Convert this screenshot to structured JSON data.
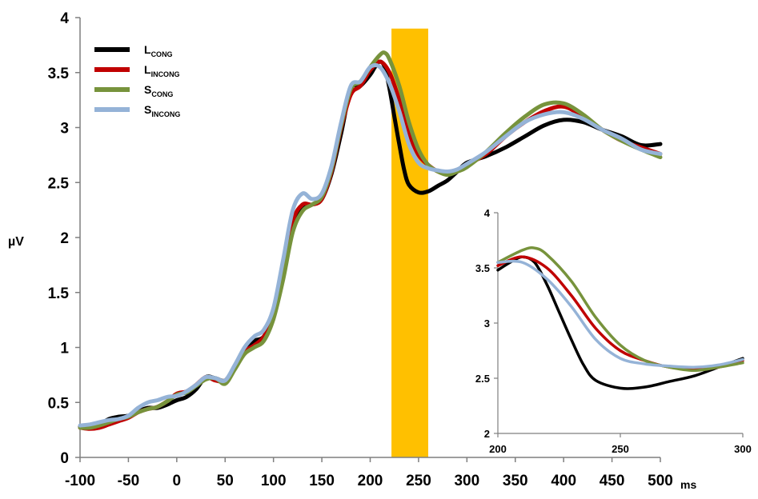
{
  "chart_data": {
    "type": "line",
    "ylabel": "µV",
    "xunit": "ms",
    "main": {
      "xlim": [
        -100,
        500
      ],
      "ylim": [
        0,
        4
      ],
      "xticks": [
        -100,
        -50,
        0,
        50,
        100,
        150,
        200,
        250,
        300,
        350,
        400,
        450,
        500
      ],
      "yticks": [
        0,
        0.5,
        1,
        1.5,
        2,
        2.5,
        3,
        3.5,
        4
      ],
      "highlight_window": [
        222,
        260
      ],
      "highlight_color": "#FFC000"
    },
    "inset": {
      "xlim": [
        200,
        300
      ],
      "ylim": [
        2,
        4
      ],
      "xticks": [
        200,
        250,
        300
      ],
      "yticks": [
        2,
        2.5,
        3,
        3.5,
        4
      ]
    },
    "series": [
      {
        "name": "L",
        "subscript": "CONG",
        "color": "#000000",
        "points": [
          [
            -100,
            0.28
          ],
          [
            -90,
            0.28
          ],
          [
            -80,
            0.3
          ],
          [
            -70,
            0.35
          ],
          [
            -60,
            0.37
          ],
          [
            -50,
            0.38
          ],
          [
            -40,
            0.42
          ],
          [
            -30,
            0.45
          ],
          [
            -20,
            0.45
          ],
          [
            -10,
            0.48
          ],
          [
            0,
            0.52
          ],
          [
            10,
            0.55
          ],
          [
            20,
            0.62
          ],
          [
            30,
            0.73
          ],
          [
            40,
            0.72
          ],
          [
            50,
            0.7
          ],
          [
            60,
            0.82
          ],
          [
            70,
            0.98
          ],
          [
            80,
            1.06
          ],
          [
            90,
            1.1
          ],
          [
            100,
            1.28
          ],
          [
            110,
            1.65
          ],
          [
            120,
            2.1
          ],
          [
            130,
            2.28
          ],
          [
            140,
            2.3
          ],
          [
            150,
            2.35
          ],
          [
            160,
            2.58
          ],
          [
            170,
            2.95
          ],
          [
            180,
            3.35
          ],
          [
            190,
            3.38
          ],
          [
            200,
            3.48
          ],
          [
            205,
            3.55
          ],
          [
            210,
            3.6
          ],
          [
            215,
            3.55
          ],
          [
            220,
            3.35
          ],
          [
            225,
            3.1
          ],
          [
            230,
            2.85
          ],
          [
            235,
            2.62
          ],
          [
            240,
            2.48
          ],
          [
            250,
            2.41
          ],
          [
            260,
            2.42
          ],
          [
            270,
            2.47
          ],
          [
            280,
            2.52
          ],
          [
            290,
            2.6
          ],
          [
            300,
            2.68
          ],
          [
            320,
            2.74
          ],
          [
            340,
            2.82
          ],
          [
            360,
            2.92
          ],
          [
            380,
            3.02
          ],
          [
            400,
            3.07
          ],
          [
            420,
            3.05
          ],
          [
            440,
            2.98
          ],
          [
            460,
            2.92
          ],
          [
            480,
            2.84
          ],
          [
            500,
            2.85
          ]
        ]
      },
      {
        "name": "L",
        "subscript": "INCONG",
        "color": "#C00000",
        "points": [
          [
            -100,
            0.27
          ],
          [
            -90,
            0.26
          ],
          [
            -80,
            0.27
          ],
          [
            -70,
            0.3
          ],
          [
            -60,
            0.33
          ],
          [
            -50,
            0.36
          ],
          [
            -40,
            0.41
          ],
          [
            -30,
            0.44
          ],
          [
            -20,
            0.46
          ],
          [
            -10,
            0.51
          ],
          [
            0,
            0.58
          ],
          [
            10,
            0.6
          ],
          [
            20,
            0.66
          ],
          [
            30,
            0.73
          ],
          [
            40,
            0.7
          ],
          [
            50,
            0.7
          ],
          [
            60,
            0.82
          ],
          [
            70,
            0.96
          ],
          [
            80,
            1.02
          ],
          [
            90,
            1.1
          ],
          [
            100,
            1.3
          ],
          [
            110,
            1.72
          ],
          [
            120,
            2.15
          ],
          [
            130,
            2.3
          ],
          [
            140,
            2.3
          ],
          [
            150,
            2.35
          ],
          [
            160,
            2.6
          ],
          [
            170,
            3.0
          ],
          [
            180,
            3.3
          ],
          [
            190,
            3.38
          ],
          [
            200,
            3.52
          ],
          [
            210,
            3.6
          ],
          [
            220,
            3.5
          ],
          [
            230,
            3.25
          ],
          [
            240,
            2.95
          ],
          [
            250,
            2.75
          ],
          [
            260,
            2.66
          ],
          [
            270,
            2.6
          ],
          [
            280,
            2.58
          ],
          [
            290,
            2.6
          ],
          [
            300,
            2.66
          ],
          [
            320,
            2.76
          ],
          [
            340,
            2.92
          ],
          [
            360,
            3.05
          ],
          [
            380,
            3.15
          ],
          [
            400,
            3.19
          ],
          [
            420,
            3.1
          ],
          [
            440,
            2.98
          ],
          [
            460,
            2.88
          ],
          [
            480,
            2.82
          ],
          [
            500,
            2.76
          ]
        ]
      },
      {
        "name": "S",
        "subscript": "CONG",
        "color": "#77933C",
        "points": [
          [
            -100,
            0.27
          ],
          [
            -90,
            0.27
          ],
          [
            -80,
            0.29
          ],
          [
            -70,
            0.32
          ],
          [
            -60,
            0.35
          ],
          [
            -50,
            0.37
          ],
          [
            -40,
            0.41
          ],
          [
            -30,
            0.44
          ],
          [
            -20,
            0.46
          ],
          [
            -10,
            0.51
          ],
          [
            0,
            0.57
          ],
          [
            10,
            0.59
          ],
          [
            20,
            0.65
          ],
          [
            30,
            0.71
          ],
          [
            40,
            0.72
          ],
          [
            50,
            0.67
          ],
          [
            60,
            0.8
          ],
          [
            70,
            0.94
          ],
          [
            80,
            1.0
          ],
          [
            90,
            1.06
          ],
          [
            100,
            1.26
          ],
          [
            110,
            1.62
          ],
          [
            120,
            2.05
          ],
          [
            130,
            2.24
          ],
          [
            140,
            2.3
          ],
          [
            150,
            2.37
          ],
          [
            160,
            2.62
          ],
          [
            170,
            3.02
          ],
          [
            180,
            3.35
          ],
          [
            190,
            3.42
          ],
          [
            200,
            3.55
          ],
          [
            210,
            3.66
          ],
          [
            215,
            3.68
          ],
          [
            220,
            3.62
          ],
          [
            230,
            3.38
          ],
          [
            240,
            3.05
          ],
          [
            250,
            2.8
          ],
          [
            260,
            2.66
          ],
          [
            270,
            2.6
          ],
          [
            280,
            2.57
          ],
          [
            290,
            2.6
          ],
          [
            300,
            2.64
          ],
          [
            320,
            2.78
          ],
          [
            340,
            2.95
          ],
          [
            360,
            3.1
          ],
          [
            380,
            3.21
          ],
          [
            400,
            3.22
          ],
          [
            420,
            3.12
          ],
          [
            440,
            2.98
          ],
          [
            460,
            2.88
          ],
          [
            480,
            2.8
          ],
          [
            500,
            2.73
          ]
        ]
      },
      {
        "name": "S",
        "subscript": "INCONG",
        "color": "#95B3D7",
        "points": [
          [
            -100,
            0.29
          ],
          [
            -90,
            0.3
          ],
          [
            -80,
            0.32
          ],
          [
            -70,
            0.34
          ],
          [
            -60,
            0.35
          ],
          [
            -50,
            0.38
          ],
          [
            -40,
            0.45
          ],
          [
            -30,
            0.5
          ],
          [
            -20,
            0.52
          ],
          [
            -10,
            0.55
          ],
          [
            0,
            0.56
          ],
          [
            10,
            0.6
          ],
          [
            20,
            0.66
          ],
          [
            30,
            0.73
          ],
          [
            40,
            0.72
          ],
          [
            50,
            0.7
          ],
          [
            60,
            0.84
          ],
          [
            70,
            1.0
          ],
          [
            80,
            1.1
          ],
          [
            90,
            1.16
          ],
          [
            100,
            1.36
          ],
          [
            110,
            1.8
          ],
          [
            120,
            2.25
          ],
          [
            130,
            2.4
          ],
          [
            140,
            2.35
          ],
          [
            150,
            2.4
          ],
          [
            160,
            2.65
          ],
          [
            170,
            3.05
          ],
          [
            180,
            3.38
          ],
          [
            190,
            3.42
          ],
          [
            200,
            3.55
          ],
          [
            210,
            3.55
          ],
          [
            220,
            3.4
          ],
          [
            230,
            3.15
          ],
          [
            240,
            2.85
          ],
          [
            250,
            2.68
          ],
          [
            260,
            2.63
          ],
          [
            270,
            2.61
          ],
          [
            280,
            2.6
          ],
          [
            290,
            2.62
          ],
          [
            300,
            2.67
          ],
          [
            320,
            2.78
          ],
          [
            340,
            2.92
          ],
          [
            360,
            3.05
          ],
          [
            380,
            3.12
          ],
          [
            400,
            3.14
          ],
          [
            420,
            3.08
          ],
          [
            440,
            2.98
          ],
          [
            460,
            2.9
          ],
          [
            480,
            2.8
          ],
          [
            500,
            2.76
          ]
        ]
      }
    ]
  }
}
